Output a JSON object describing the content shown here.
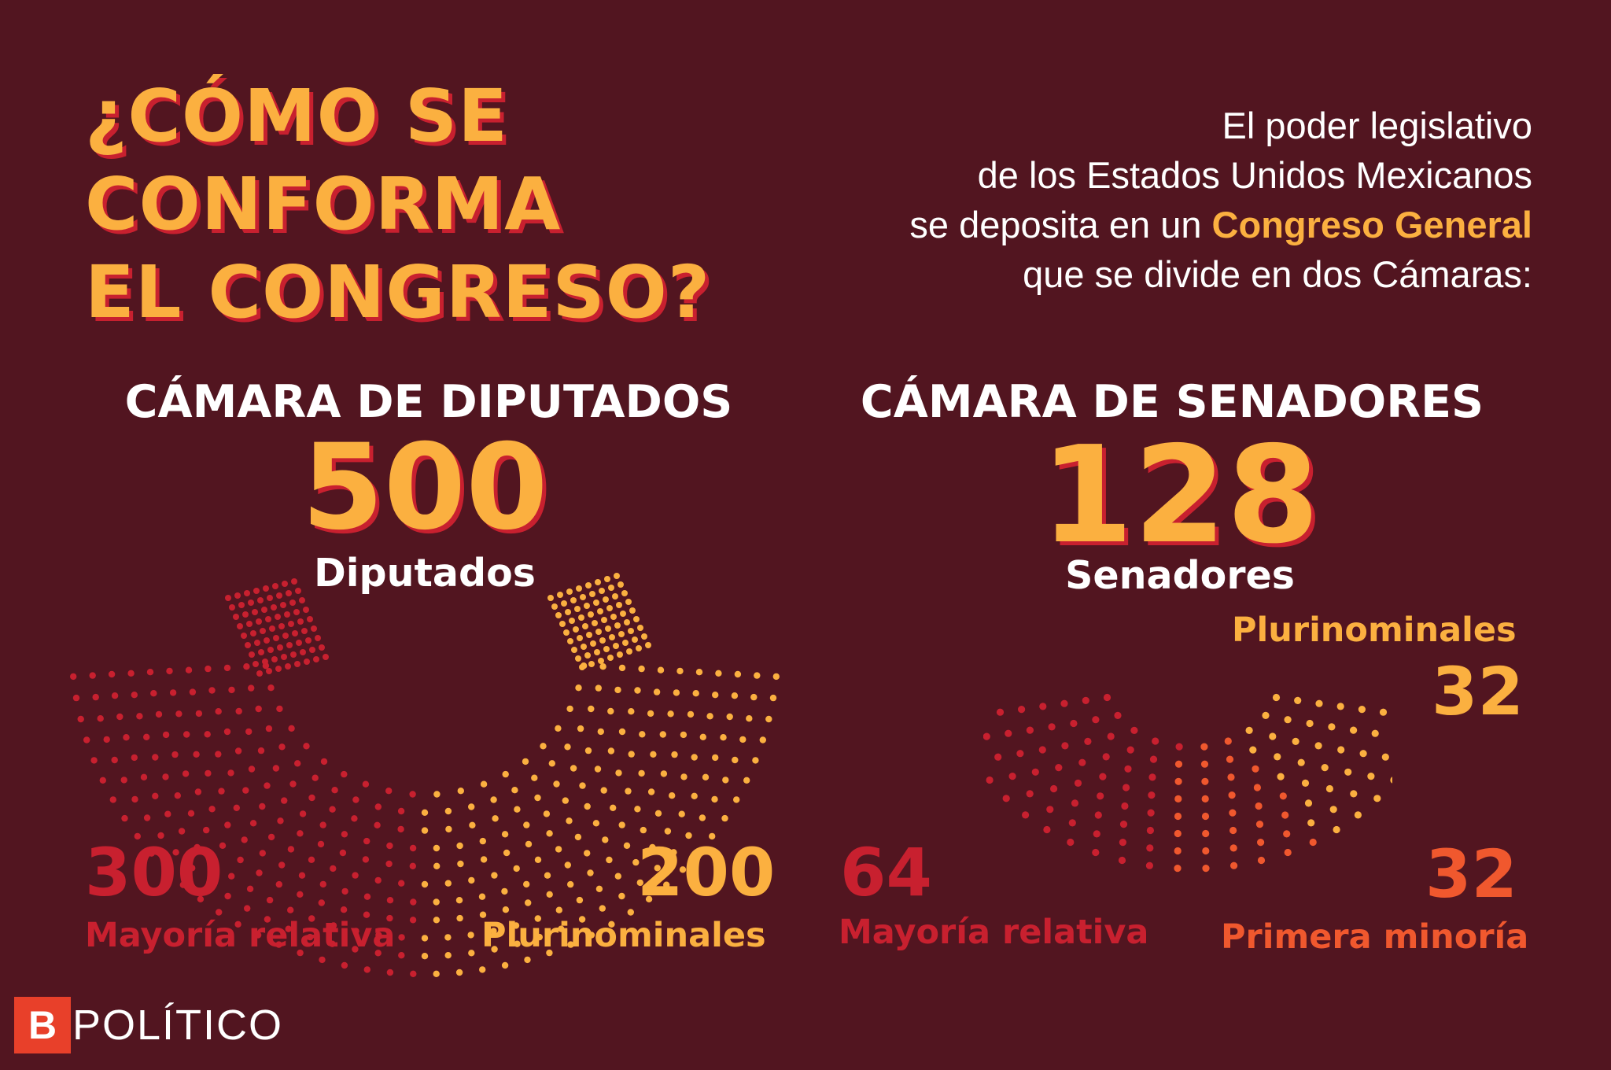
{
  "title": {
    "line1": "¿CÓMO SE",
    "line2": "CONFORMA",
    "line3": "EL CONGRESO?"
  },
  "intro": {
    "line1": "El poder legislativo",
    "line2": "de los Estados Unidos Mexicanos",
    "line3_pre": "se deposita en un ",
    "line3_highlight": "Congreso General",
    "line4": "que se divide en dos Cámaras:"
  },
  "diputados": {
    "title": "CÁMARA DE DIPUTADOS",
    "total": "500",
    "unit": "Diputados",
    "mayoria_value": "300",
    "mayoria_label": "Mayoría relativa",
    "pluri_value": "200",
    "pluri_label": "Plurinominales"
  },
  "senadores": {
    "title": "CÁMARA DE SENADORES",
    "total": "128",
    "unit": "Senadores",
    "pluri_label": "Plurinominales",
    "pluri_value": "32",
    "mayoria_value": "64",
    "mayoria_label": "Mayoría relativa",
    "minoria_value": "32",
    "minoria_label": "Primera minoría"
  },
  "logo": {
    "mark": "B",
    "text": "POLÍTICO"
  },
  "colors": {
    "background": "#521520",
    "yellow": "#fbb040",
    "red": "#c8202f",
    "orange": "#f0582e"
  }
}
